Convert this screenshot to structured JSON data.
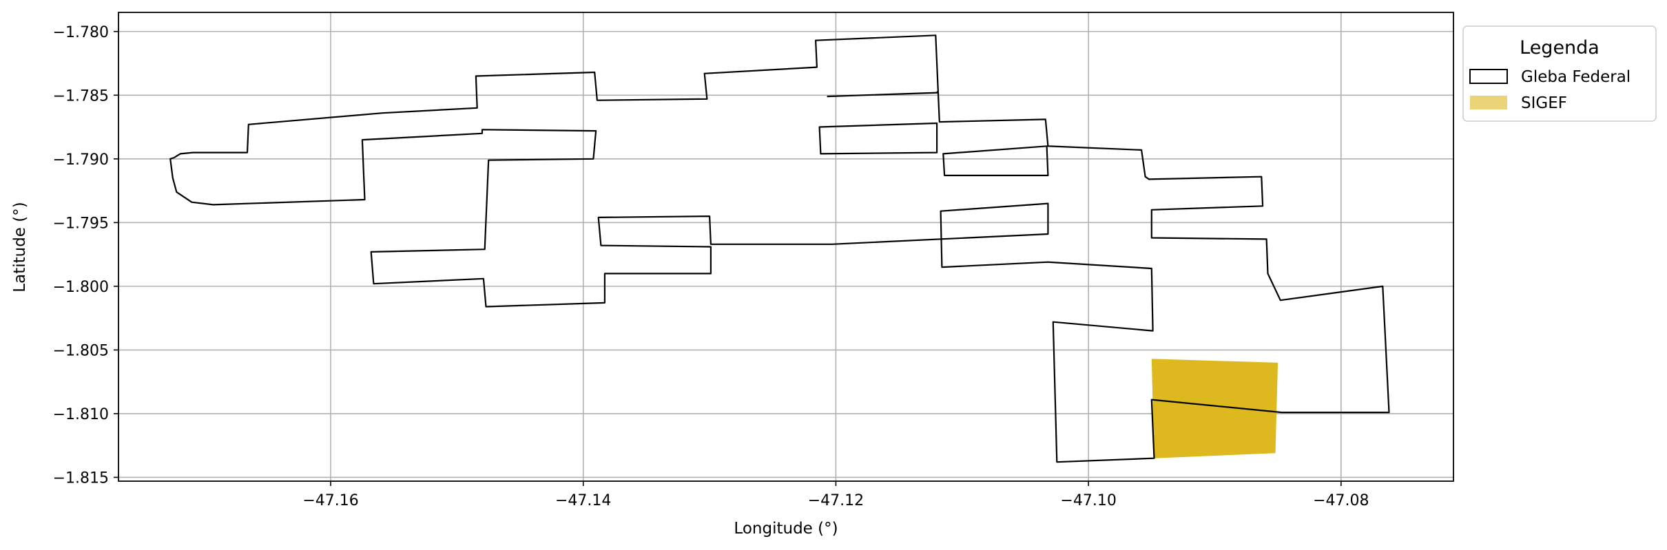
{
  "chart_data": {
    "type": "map",
    "xlabel": "Longitude (°)",
    "ylabel": "Latitude (°)",
    "xlim": [
      -47.1768,
      -47.0711
    ],
    "ylim": [
      -1.8153,
      -1.7785
    ],
    "xticks": [
      -47.16,
      -47.14,
      -47.12,
      -47.1,
      -47.08
    ],
    "xtick_labels": [
      "−47.16",
      "−47.14",
      "−47.12",
      "−47.10",
      "−47.08"
    ],
    "yticks": [
      -1.78,
      -1.785,
      -1.79,
      -1.795,
      -1.8,
      -1.805,
      -1.81,
      -1.815
    ],
    "ytick_labels": [
      "−1.780",
      "−1.785",
      "−1.790",
      "−1.795",
      "−1.800",
      "−1.805",
      "−1.810",
      "−1.815"
    ],
    "grid": true,
    "legend": {
      "title": "Legenda",
      "placement": "outside top-right",
      "entries": [
        {
          "label": "Gleba Federal",
          "style": "outline",
          "color": "#000000"
        },
        {
          "label": "SIGEF",
          "style": "fill",
          "color": "#DDB81E"
        }
      ]
    },
    "layers": [
      {
        "name": "Gleba Federal",
        "style": "outline",
        "color": "#000000",
        "polygons": [
          [
            [
              -47.1724,
              -1.7899
            ],
            [
              -47.1719,
              -1.7896
            ],
            [
              -47.1709,
              -1.7895
            ],
            [
              -47.1666,
              -1.7895
            ],
            [
              -47.1665,
              -1.7873
            ],
            [
              -47.1559,
              -1.7864
            ],
            [
              -47.1484,
              -1.786
            ],
            [
              -47.1485,
              -1.7835
            ],
            [
              -47.1391,
              -1.7832
            ],
            [
              -47.1389,
              -1.7854
            ],
            [
              -47.1302,
              -1.7853
            ],
            [
              -47.1304,
              -1.7833
            ],
            [
              -47.1215,
              -1.7828
            ],
            [
              -47.1216,
              -1.7807
            ],
            [
              -47.1121,
              -1.7803
            ],
            [
              -47.1118,
              -1.7871
            ],
            [
              -47.1034,
              -1.7869
            ],
            [
              -47.1032,
              -1.789
            ],
            [
              -47.0958,
              -1.7893
            ],
            [
              -47.0955,
              -1.7914
            ],
            [
              -47.0952,
              -1.7916
            ],
            [
              -47.0863,
              -1.7914
            ],
            [
              -47.0862,
              -1.7937
            ],
            [
              -47.095,
              -1.794
            ],
            [
              -47.095,
              -1.7962
            ],
            [
              -47.0859,
              -1.7963
            ],
            [
              -47.0858,
              -1.799
            ],
            [
              -47.0848,
              -1.8011
            ],
            [
              -47.0767,
              -1.8
            ],
            [
              -47.0762,
              -1.8099
            ],
            [
              -47.0847,
              -1.8099
            ],
            [
              -47.095,
              -1.8089
            ],
            [
              -47.0948,
              -1.8135
            ],
            [
              -47.1025,
              -1.8138
            ],
            [
              -47.1028,
              -1.8028
            ],
            [
              -47.0949,
              -1.8035
            ],
            [
              -47.095,
              -1.7986
            ],
            [
              -47.1032,
              -1.7981
            ],
            [
              -47.1116,
              -1.7985
            ],
            [
              -47.1117,
              -1.7941
            ],
            [
              -47.1032,
              -1.7935
            ],
            [
              -47.1032,
              -1.7959
            ],
            [
              -47.1203,
              -1.7967
            ],
            [
              -47.1299,
              -1.7967
            ],
            [
              -47.13,
              -1.7945
            ],
            [
              -47.1388,
              -1.7946
            ],
            [
              -47.1386,
              -1.7968
            ],
            [
              -47.1299,
              -1.7969
            ],
            [
              -47.1299,
              -1.799
            ],
            [
              -47.1383,
              -1.799
            ],
            [
              -47.1383,
              -1.8013
            ],
            [
              -47.1477,
              -1.8016
            ],
            [
              -47.1479,
              -1.7994
            ],
            [
              -47.1566,
              -1.7998
            ],
            [
              -47.1568,
              -1.7973
            ],
            [
              -47.1478,
              -1.7971
            ],
            [
              -47.1475,
              -1.7901
            ],
            [
              -47.1392,
              -1.79
            ],
            [
              -47.139,
              -1.7878
            ],
            [
              -47.148,
              -1.7877
            ],
            [
              -47.148,
              -1.788
            ],
            [
              -47.1575,
              -1.7885
            ],
            [
              -47.1573,
              -1.7932
            ],
            [
              -47.1693,
              -1.7936
            ],
            [
              -47.171,
              -1.7934
            ],
            [
              -47.1716,
              -1.793
            ],
            [
              -47.1722,
              -1.7926
            ],
            [
              -47.1725,
              -1.7915
            ],
            [
              -47.1727,
              -1.79
            ]
          ],
          [
            [
              -47.1213,
              -1.7875
            ],
            [
              -47.112,
              -1.7872
            ],
            [
              -47.112,
              -1.7895
            ],
            [
              -47.1212,
              -1.7896
            ]
          ],
          [
            [
              -47.1207,
              -1.7851
            ],
            [
              -47.1119,
              -1.7848
            ],
            [
              -47.112,
              -1.7847
            ]
          ],
          [
            [
              -47.1115,
              -1.7896
            ],
            [
              -47.1033,
              -1.789
            ],
            [
              -47.1032,
              -1.7913
            ],
            [
              -47.1114,
              -1.7913
            ]
          ]
        ]
      },
      {
        "name": "SIGEF",
        "style": "fill",
        "color": "#DDB81E",
        "polygons": [
          [
            [
              -47.095,
              -1.8057
            ],
            [
              -47.085,
              -1.806
            ],
            [
              -47.0852,
              -1.8131
            ],
            [
              -47.0948,
              -1.8135
            ]
          ]
        ]
      }
    ]
  }
}
